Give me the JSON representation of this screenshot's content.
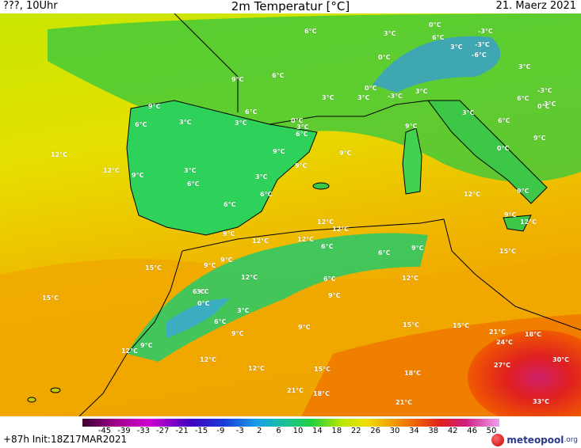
{
  "header": {
    "left": "???, 10Uhr",
    "title": "2m Temperatur [°C]",
    "date": "21. Maerz 2021"
  },
  "colors": {
    "cold": "#2060c0",
    "cool": "#1ec850",
    "mild": "#e8e800",
    "warm": "#f0a000",
    "hot": "#e03000"
  },
  "colorbar": {
    "ticks": [
      "-45",
      "-39",
      "-33",
      "-27",
      "-21",
      "-15",
      "-9",
      "-3",
      "2",
      "6",
      "10",
      "14",
      "18",
      "22",
      "26",
      "30",
      "34",
      "38",
      "42",
      "46",
      "50"
    ]
  },
  "footer": {
    "init": "+87h  Init:18Z17MAR2021",
    "logo_main": "meteopool",
    "logo_tld": ".org"
  },
  "labels": [
    {
      "t": "6°C"
    },
    {
      "t": "3°C"
    },
    {
      "t": "0°C"
    },
    {
      "t": "6°C"
    },
    {
      "t": "-3°C"
    },
    {
      "t": "3°C"
    },
    {
      "t": "-3°C"
    },
    {
      "t": "-6°C"
    },
    {
      "t": "0°C"
    },
    {
      "t": "3°C"
    },
    {
      "t": "9°C"
    },
    {
      "t": "6°C"
    },
    {
      "t": "3°C"
    },
    {
      "t": "-3°C"
    },
    {
      "t": "3°C"
    },
    {
      "t": "0°C"
    },
    {
      "t": "3°C"
    },
    {
      "t": "-3°C"
    },
    {
      "t": "6°C"
    },
    {
      "t": "3°C"
    },
    {
      "t": "0°C"
    },
    {
      "t": "9°C"
    },
    {
      "t": "6°C"
    },
    {
      "t": "3°C"
    },
    {
      "t": "6°C"
    },
    {
      "t": "3°C"
    },
    {
      "t": "0°C"
    },
    {
      "t": "3°C"
    },
    {
      "t": "3°C"
    },
    {
      "t": "6°C"
    },
    {
      "t": "9°C"
    },
    {
      "t": "6°C"
    },
    {
      "t": "9°C"
    },
    {
      "t": "9°C"
    },
    {
      "t": "0°C"
    },
    {
      "t": "9°C"
    },
    {
      "t": "12°C"
    },
    {
      "t": "12°C"
    },
    {
      "t": "9°C"
    },
    {
      "t": "3°C"
    },
    {
      "t": "6°C"
    },
    {
      "t": "9°C"
    },
    {
      "t": "3°C"
    },
    {
      "t": "6°C"
    },
    {
      "t": "6°C"
    },
    {
      "t": "12°C"
    },
    {
      "t": "9°C"
    },
    {
      "t": "12°C"
    },
    {
      "t": "9°C"
    },
    {
      "t": "12°C"
    },
    {
      "t": "12°C"
    },
    {
      "t": "9°C"
    },
    {
      "t": "12°C"
    },
    {
      "t": "12°C"
    },
    {
      "t": "9°C"
    },
    {
      "t": "6°C"
    },
    {
      "t": "6°C"
    },
    {
      "t": "9°C"
    },
    {
      "t": "15°C"
    },
    {
      "t": "9°C"
    },
    {
      "t": "12°C"
    },
    {
      "t": "12°C"
    },
    {
      "t": "15°C"
    },
    {
      "t": "6°C"
    },
    {
      "t": "6°C"
    },
    {
      "t": "9°C"
    },
    {
      "t": "15°C"
    },
    {
      "t": "3°C"
    },
    {
      "t": "0°C"
    },
    {
      "t": "3°C"
    },
    {
      "t": "6°C"
    },
    {
      "t": "9°C"
    },
    {
      "t": "9°C"
    },
    {
      "t": "15°C"
    },
    {
      "t": "15°C"
    },
    {
      "t": "12°C"
    },
    {
      "t": "9°C"
    },
    {
      "t": "21°C"
    },
    {
      "t": "18°C"
    },
    {
      "t": "24°C"
    },
    {
      "t": "12°C"
    },
    {
      "t": "12°C"
    },
    {
      "t": "15°C"
    },
    {
      "t": "18°C"
    },
    {
      "t": "27°C"
    },
    {
      "t": "30°C"
    },
    {
      "t": "21°C"
    },
    {
      "t": "18°C"
    },
    {
      "t": "21°C"
    },
    {
      "t": "33°C"
    }
  ]
}
